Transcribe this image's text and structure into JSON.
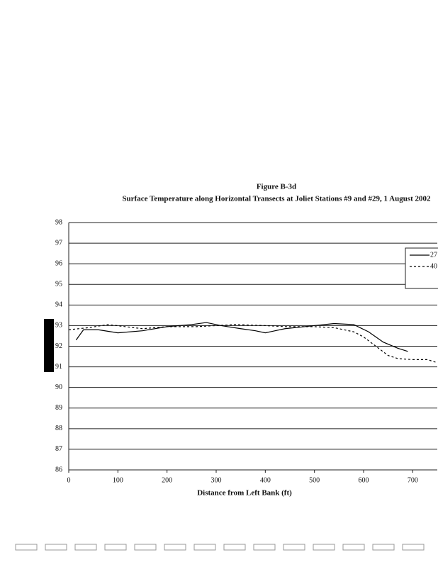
{
  "chart_data": {
    "type": "line",
    "title": "Figure B-3d",
    "subtitle": "Surface Temperature along Horizontal Transects at Joliet Stations #9 and #29, 1 August 2002",
    "x_label": "Distance from Left Bank (ft)",
    "xlim": [
      0,
      750
    ],
    "xticks": [
      0,
      100,
      200,
      300,
      400,
      500,
      600,
      700
    ],
    "ylim": [
      86,
      98
    ],
    "yticks": [
      86,
      87,
      88,
      89,
      90,
      91,
      92,
      93,
      94,
      95,
      96,
      97,
      98
    ],
    "grid": true,
    "legend": "right",
    "series": [
      {
        "name": "27",
        "color": "#000000",
        "dash": false,
        "x": [
          15,
          30,
          60,
          100,
          150,
          200,
          250,
          280,
          310,
          350,
          380,
          400,
          440,
          500,
          540,
          580,
          610,
          640,
          670,
          690
        ],
        "values": [
          92.3,
          92.8,
          92.8,
          92.65,
          92.75,
          92.95,
          93.05,
          93.15,
          93.0,
          92.85,
          92.75,
          92.65,
          92.85,
          93.0,
          93.1,
          93.05,
          92.7,
          92.2,
          91.9,
          91.75
        ]
      },
      {
        "name": "40",
        "color": "#000000",
        "dash": true,
        "x": [
          0,
          40,
          80,
          150,
          200,
          260,
          340,
          400,
          440,
          500,
          540,
          580,
          600,
          625,
          650,
          670,
          700,
          730,
          750
        ],
        "values": [
          92.8,
          92.9,
          93.05,
          92.85,
          92.95,
          92.95,
          93.05,
          93.0,
          92.95,
          92.95,
          92.9,
          92.7,
          92.45,
          92.0,
          91.55,
          91.4,
          91.35,
          91.35,
          91.2
        ]
      }
    ]
  }
}
